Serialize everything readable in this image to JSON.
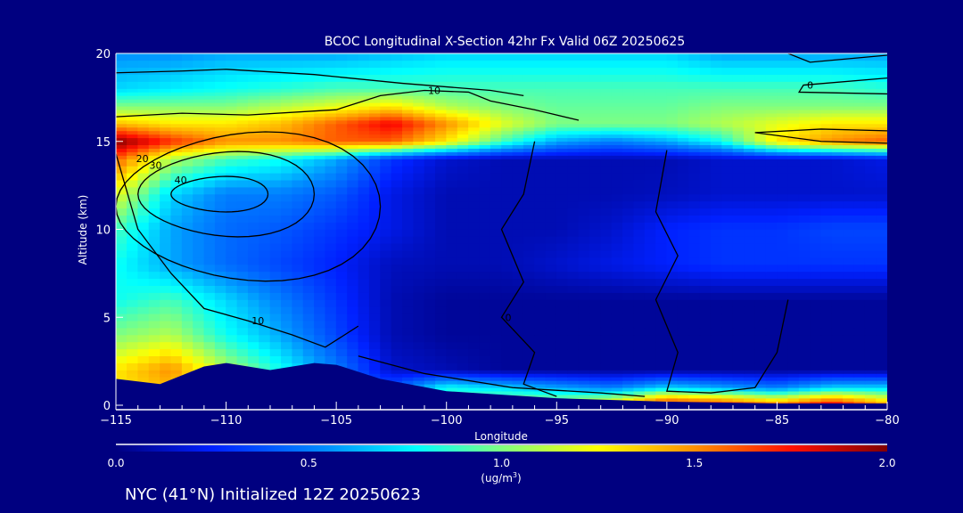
{
  "chart_data": {
    "type": "heatmap",
    "title": "BCOC Longitudinal X-Section 42hr  Fx Valid 06Z 20250625",
    "xlabel": "Longitude",
    "ylabel": "Altitude (km)",
    "xlim": [
      -115,
      -80
    ],
    "ylim": [
      0,
      20
    ],
    "x_ticks": [
      -115,
      -110,
      -105,
      -100,
      -95,
      -90,
      -85,
      -80
    ],
    "x_tick_labels": [
      "−115",
      "−110",
      "−105",
      "−100",
      "−95",
      "−90",
      "−85",
      "−80"
    ],
    "y_ticks": [
      0,
      5,
      10,
      15,
      20
    ],
    "y_tick_labels": [
      "0",
      "5",
      "10",
      "15",
      "20"
    ],
    "colorbar": {
      "range": [
        0,
        2
      ],
      "ticks": [
        "0.0",
        "0.5",
        "1.0",
        "1.5",
        "2.0"
      ],
      "units_prefix": "(ug/m",
      "units_sup": "3",
      "units_suffix": ")",
      "stops": [
        [
          0,
          "#000080"
        ],
        [
          0.25,
          "#0020ff"
        ],
        [
          0.55,
          "#0090ff"
        ],
        [
          0.78,
          "#00ffff"
        ],
        [
          1.0,
          "#80ff80"
        ],
        [
          1.25,
          "#ffff00"
        ],
        [
          1.5,
          "#ff9000"
        ],
        [
          1.75,
          "#ff1000"
        ],
        [
          2.0,
          "#800000"
        ]
      ]
    },
    "grid": {
      "lon": [
        -115,
        -112.5,
        -110,
        -107.5,
        -105,
        -102.5,
        -100,
        -97.5,
        -95,
        -92.5,
        -90,
        -87.5,
        -85,
        -82.5,
        -80
      ],
      "alt": [
        0,
        1,
        2,
        4,
        6,
        8,
        10,
        12,
        14,
        15,
        16,
        17,
        18,
        20
      ],
      "values": [
        [
          1.3,
          1.4,
          1.0,
          0.8,
          0.5,
          0.4,
          1.0,
          1.2,
          1.2,
          1.4,
          1.9,
          1.8,
          1.6,
          1.9,
          1.5
        ],
        [
          1.3,
          1.4,
          1.0,
          0.8,
          0.5,
          0.4,
          0.8,
          0.7,
          0.6,
          0.5,
          0.7,
          0.6,
          0.5,
          0.7,
          0.7
        ],
        [
          1.3,
          1.5,
          1.1,
          0.8,
          0.5,
          0.15,
          0.1,
          0.05,
          0.05,
          0.05,
          0.05,
          0.05,
          0.05,
          0.05,
          0.05
        ],
        [
          1.0,
          1.1,
          0.8,
          0.6,
          0.35,
          0.1,
          0.05,
          0.05,
          0.05,
          0.05,
          0.05,
          0.05,
          0.05,
          0.05,
          0.05
        ],
        [
          0.8,
          0.9,
          0.7,
          0.5,
          0.3,
          0.1,
          0.05,
          0.05,
          0.05,
          0.05,
          0.05,
          0.05,
          0.05,
          0.05,
          0.05
        ],
        [
          0.8,
          0.6,
          0.45,
          0.35,
          0.25,
          0.12,
          0.1,
          0.1,
          0.15,
          0.2,
          0.25,
          0.3,
          0.3,
          0.3,
          0.3
        ],
        [
          0.9,
          0.6,
          0.45,
          0.4,
          0.3,
          0.2,
          0.1,
          0.1,
          0.1,
          0.15,
          0.25,
          0.3,
          0.3,
          0.35,
          0.35
        ],
        [
          1.2,
          0.7,
          0.5,
          0.5,
          0.4,
          0.2,
          0.1,
          0.1,
          0.1,
          0.1,
          0.12,
          0.15,
          0.15,
          0.15,
          0.15
        ],
        [
          1.6,
          1.1,
          0.9,
          0.8,
          0.6,
          0.3,
          0.15,
          0.1,
          0.1,
          0.1,
          0.1,
          0.15,
          0.15,
          0.15,
          0.2
        ],
        [
          2.0,
          1.7,
          1.5,
          1.5,
          1.6,
          1.6,
          1.3,
          0.9,
          0.6,
          0.5,
          0.6,
          0.8,
          1.3,
          1.5,
          1.6
        ],
        [
          1.4,
          1.3,
          1.3,
          1.4,
          1.6,
          1.8,
          1.5,
          1.2,
          1.0,
          1.0,
          1.0,
          1.1,
          1.2,
          1.3,
          1.3
        ],
        [
          1.0,
          1.0,
          1.0,
          1.1,
          1.2,
          1.3,
          1.1,
          1.0,
          0.95,
          0.95,
          0.95,
          1.0,
          1.0,
          1.0,
          1.0
        ],
        [
          0.7,
          0.75,
          0.8,
          0.85,
          0.9,
          0.9,
          0.9,
          0.9,
          0.9,
          0.9,
          0.9,
          0.9,
          0.9,
          0.9,
          0.85
        ],
        [
          0.55,
          0.55,
          0.6,
          0.6,
          0.6,
          0.65,
          0.7,
          0.7,
          0.7,
          0.7,
          0.7,
          0.6,
          0.6,
          0.6,
          0.6
        ]
      ]
    },
    "terrain": [
      [
        -115,
        1.5
      ],
      [
        -113,
        1.2
      ],
      [
        -111,
        2.2
      ],
      [
        -110,
        2.4
      ],
      [
        -108,
        2.0
      ],
      [
        -106,
        2.4
      ],
      [
        -105,
        2.3
      ],
      [
        -103,
        1.5
      ],
      [
        -100,
        0.8
      ],
      [
        -95,
        0.4
      ],
      [
        -90,
        0.2
      ],
      [
        -85,
        0.1
      ],
      [
        -80,
        0.1
      ]
    ],
    "contours": [
      {
        "label": "40",
        "center": [
          -110.3,
          12.0
        ],
        "radii": [
          2.2,
          1.0
        ]
      },
      {
        "label": "30",
        "center": [
          -110.0,
          12.0
        ],
        "radii": [
          4.0,
          2.4
        ]
      },
      {
        "label": "20",
        "center": [
          -109.0,
          11.3
        ],
        "radii": [
          6.0,
          4.2
        ]
      }
    ],
    "contour_lines": [
      {
        "label": "10",
        "points": [
          [
            -115,
            16.4
          ],
          [
            -112,
            16.6
          ],
          [
            -109,
            16.5
          ],
          [
            -105,
            16.8
          ],
          [
            -103,
            17.6
          ],
          [
            -101,
            17.9
          ],
          [
            -99,
            17.8
          ],
          [
            -98,
            17.3
          ],
          [
            -96,
            16.8
          ],
          [
            -94,
            16.2
          ]
        ]
      },
      {
        "label": "",
        "points": [
          [
            -115,
            18.9
          ],
          [
            -112,
            19.0
          ],
          [
            -110,
            19.1
          ],
          [
            -106,
            18.8
          ],
          [
            -102,
            18.3
          ],
          [
            -98,
            17.9
          ],
          [
            -96.5,
            17.6
          ]
        ]
      },
      {
        "label": "10",
        "points": [
          [
            -115,
            14.3
          ],
          [
            -114,
            10
          ],
          [
            -112.5,
            7.5
          ],
          [
            -111,
            5.5
          ],
          [
            -109,
            4.8
          ],
          [
            -107,
            4.0
          ],
          [
            -105.5,
            3.3
          ],
          [
            -104,
            4.5
          ]
        ]
      },
      {
        "label": "0",
        "points": [
          [
            -96,
            15.0
          ],
          [
            -96.5,
            12
          ],
          [
            -97.5,
            10
          ],
          [
            -96.5,
            7
          ],
          [
            -97.5,
            5
          ],
          [
            -96,
            3
          ],
          [
            -96.5,
            1.2
          ],
          [
            -95,
            0.5
          ]
        ]
      },
      {
        "label": "",
        "points": [
          [
            -90,
            14.5
          ],
          [
            -90.5,
            11
          ],
          [
            -89.5,
            8.5
          ],
          [
            -90.5,
            6
          ],
          [
            -89.5,
            3
          ],
          [
            -90,
            0.8
          ],
          [
            -88,
            0.7
          ],
          [
            -86,
            1.0
          ],
          [
            -85,
            3
          ],
          [
            -84.5,
            6
          ]
        ]
      },
      {
        "label": "0",
        "points": [
          [
            -80,
            17.7
          ],
          [
            -84,
            17.8
          ],
          [
            -83.8,
            18.2
          ],
          [
            -80,
            18.6
          ]
        ]
      },
      {
        "label": "",
        "points": [
          [
            -80,
            19.9
          ],
          [
            -83.5,
            19.5
          ],
          [
            -84.5,
            20
          ]
        ]
      },
      {
        "label": "",
        "points": [
          [
            -80,
            15.6
          ],
          [
            -83,
            15.7
          ],
          [
            -86,
            15.5
          ],
          [
            -83,
            15.0
          ],
          [
            -80,
            14.9
          ]
        ]
      },
      {
        "label": "",
        "points": [
          [
            -104,
            2.8
          ],
          [
            -101,
            1.8
          ],
          [
            -97,
            1.0
          ],
          [
            -93,
            0.7
          ],
          [
            -91,
            0.5
          ]
        ]
      }
    ],
    "footer": "NYC (41°N) Initialized 12Z 20250623"
  }
}
